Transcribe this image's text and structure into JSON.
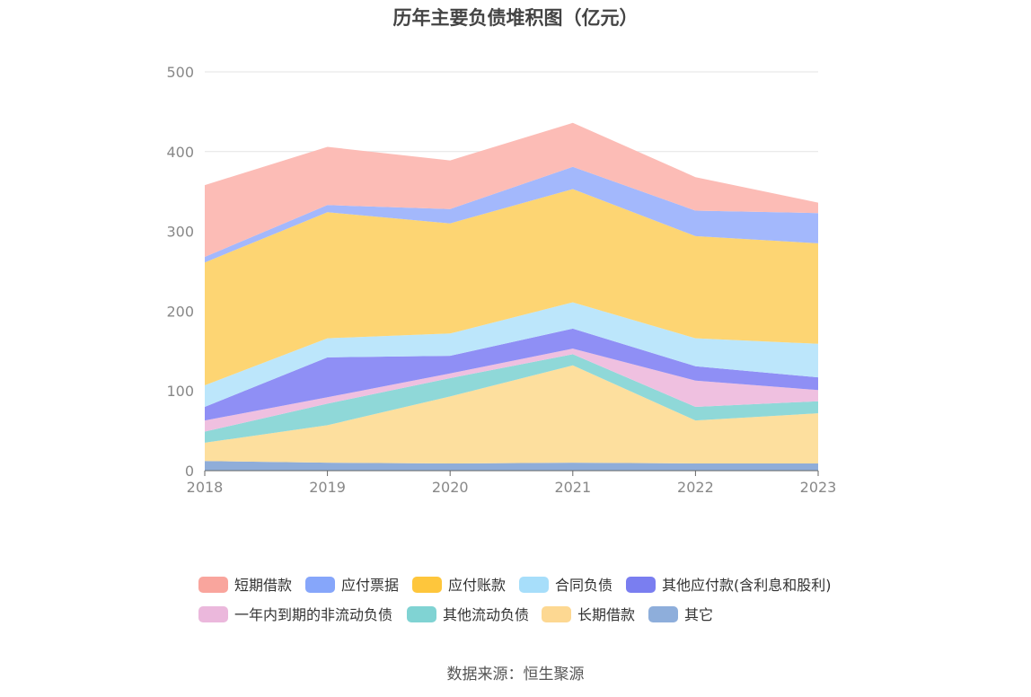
{
  "chart_data": {
    "type": "area",
    "stacked": true,
    "title": "历年主要负债堆积图（亿元）",
    "x": [
      "2018",
      "2019",
      "2020",
      "2021",
      "2022",
      "2023"
    ],
    "y_ticks": [
      "0",
      "100",
      "200",
      "300",
      "400",
      "500"
    ],
    "ylim": [
      0,
      500
    ],
    "grid": true,
    "legend_position": "bottom",
    "series": [
      {
        "name": "其它",
        "color": "#8fadd9",
        "values": [
          12,
          10,
          9,
          10,
          9,
          9
        ]
      },
      {
        "name": "长期借款",
        "color": "#fddf9e",
        "values": [
          23,
          47,
          84,
          122,
          54,
          63
        ]
      },
      {
        "name": "其他流动负债",
        "color": "#8fd8d8",
        "values": [
          14,
          27,
          23,
          14,
          17,
          15
        ]
      },
      {
        "name": "一年内到期的非流动负债",
        "color": "#efc0e0",
        "values": [
          14,
          8,
          6,
          7,
          33,
          14
        ]
      },
      {
        "name": "其他应付款(含利息和股利)",
        "color": "#8f8ff5",
        "values": [
          17,
          50,
          22,
          25,
          18,
          16
        ]
      },
      {
        "name": "合同负债",
        "color": "#bce6fb",
        "values": [
          27,
          24,
          28,
          33,
          35,
          42
        ]
      },
      {
        "name": "应付账款",
        "color": "#fdd573",
        "values": [
          154,
          158,
          138,
          142,
          128,
          126
        ]
      },
      {
        "name": "应付票据",
        "color": "#a3b8fc",
        "values": [
          7,
          9,
          18,
          28,
          32,
          38
        ]
      },
      {
        "name": "短期借款",
        "color": "#fcbcb6",
        "values": [
          90,
          73,
          61,
          55,
          42,
          13
        ]
      }
    ],
    "legend": [
      {
        "name": "短期借款",
        "color": "#f9a59d"
      },
      {
        "name": "应付票据",
        "color": "#86a6fa"
      },
      {
        "name": "应付账款",
        "color": "#fec63c"
      },
      {
        "name": "合同负债",
        "color": "#a7defa"
      },
      {
        "name": "其他应付款(含利息和股利)",
        "color": "#7a7ef0"
      },
      {
        "name": "一年内到期的非流动负债",
        "color": "#ebb8dc"
      },
      {
        "name": "其他流动负债",
        "color": "#80d3d3"
      },
      {
        "name": "长期借款",
        "color": "#fdd892"
      },
      {
        "name": "其它",
        "color": "#8eaedb"
      }
    ]
  },
  "footer": {
    "source": "数据来源：恒生聚源"
  }
}
